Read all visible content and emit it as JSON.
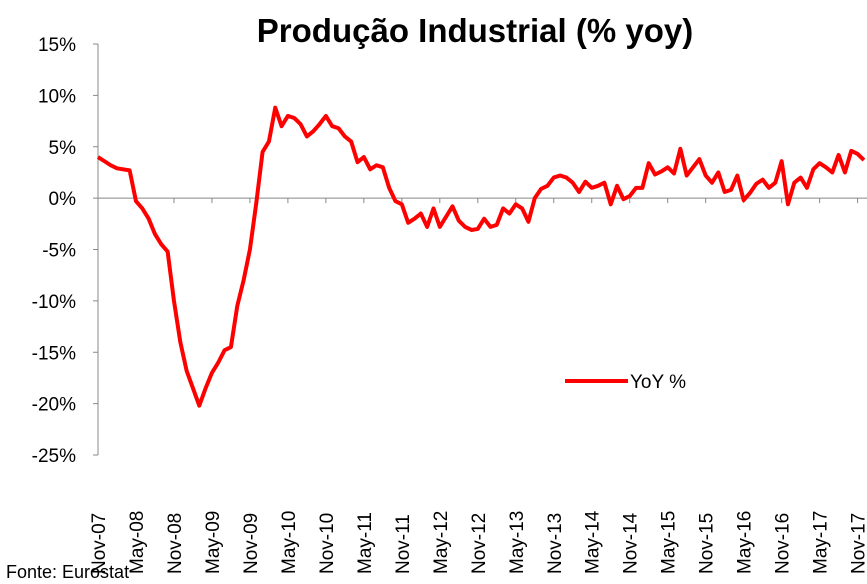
{
  "chart_data": {
    "type": "line",
    "title": "Produção Industrial (% yoy)",
    "source": "Fonte: Eurostat",
    "categories": [
      "Nov-07",
      null,
      null,
      null,
      null,
      null,
      "May-08",
      null,
      null,
      null,
      null,
      null,
      "Nov-08",
      null,
      null,
      null,
      null,
      null,
      "May-09",
      null,
      null,
      null,
      null,
      null,
      "Nov-09",
      null,
      null,
      null,
      null,
      null,
      "May-10",
      null,
      null,
      null,
      null,
      null,
      "Nov-10",
      null,
      null,
      null,
      null,
      null,
      "May-11",
      null,
      null,
      null,
      null,
      null,
      "Nov-11",
      null,
      null,
      null,
      null,
      null,
      "May-12",
      null,
      null,
      null,
      null,
      null,
      "Nov-12",
      null,
      null,
      null,
      null,
      null,
      "May-13",
      null,
      null,
      null,
      null,
      null,
      "Nov-13",
      null,
      null,
      null,
      null,
      null,
      "May-14",
      null,
      null,
      null,
      null,
      null,
      "Nov-14",
      null,
      null,
      null,
      null,
      null,
      "May-15",
      null,
      null,
      null,
      null,
      null,
      "Nov-15",
      null,
      null,
      null,
      null,
      null,
      "May-16",
      null,
      null,
      null,
      null,
      null,
      "Nov-16",
      null,
      null,
      null,
      null,
      null,
      "May-17",
      null,
      null,
      null,
      null,
      null,
      "Nov-17",
      null
    ],
    "series": [
      {
        "name": "YoY %",
        "color": "#ff0000",
        "values": [
          4.0,
          3.6,
          3.2,
          2.9,
          2.8,
          2.7,
          -0.3,
          -1.0,
          -2.0,
          -3.5,
          -4.5,
          -5.2,
          -10.0,
          -14.0,
          -16.8,
          -18.5,
          -20.2,
          -18.5,
          -17.0,
          -16.0,
          -14.8,
          -14.5,
          -10.5,
          -8.0,
          -5.0,
          -0.5,
          4.5,
          5.5,
          8.8,
          7.0,
          8.0,
          7.8,
          7.2,
          6.0,
          6.5,
          7.2,
          8.0,
          7.0,
          6.8,
          6.0,
          5.5,
          3.5,
          4.0,
          2.8,
          3.2,
          3.0,
          1.0,
          -0.3,
          -0.6,
          -2.4,
          -2.0,
          -1.5,
          -2.8,
          -1.0,
          -2.8,
          -1.8,
          -0.8,
          -2.2,
          -2.8,
          -3.1,
          -3.0,
          -2.0,
          -2.8,
          -2.6,
          -1.0,
          -1.5,
          -0.6,
          -1.0,
          -2.3,
          0.0,
          0.9,
          1.2,
          2.0,
          2.2,
          2.0,
          1.5,
          0.6,
          1.6,
          1.0,
          1.2,
          1.5,
          -0.6,
          1.2,
          -0.1,
          0.2,
          1.0,
          1.0,
          3.4,
          2.3,
          2.6,
          3.0,
          2.4,
          4.8,
          2.2,
          3.0,
          3.8,
          2.2,
          1.5,
          2.5,
          0.6,
          0.8,
          2.2,
          -0.2,
          0.5,
          1.4,
          1.8,
          1.0,
          1.5,
          3.6,
          -0.6,
          1.5,
          2.0,
          1.0,
          2.8,
          3.4,
          3.0,
          2.5,
          4.2,
          2.5,
          4.6,
          4.3,
          3.7
        ]
      }
    ],
    "ylim": [
      -25,
      15
    ],
    "yticks": [
      {
        "value": -25,
        "label": "-25%"
      },
      {
        "value": -20,
        "label": "-20%"
      },
      {
        "value": -15,
        "label": "-15%"
      },
      {
        "value": -10,
        "label": "-10%"
      },
      {
        "value": -5,
        "label": "-5%"
      },
      {
        "value": 0,
        "label": "0%"
      },
      {
        "value": 5,
        "label": "5%"
      },
      {
        "value": 10,
        "label": "10%"
      },
      {
        "value": 15,
        "label": "15%"
      }
    ],
    "legend": "center-right"
  }
}
